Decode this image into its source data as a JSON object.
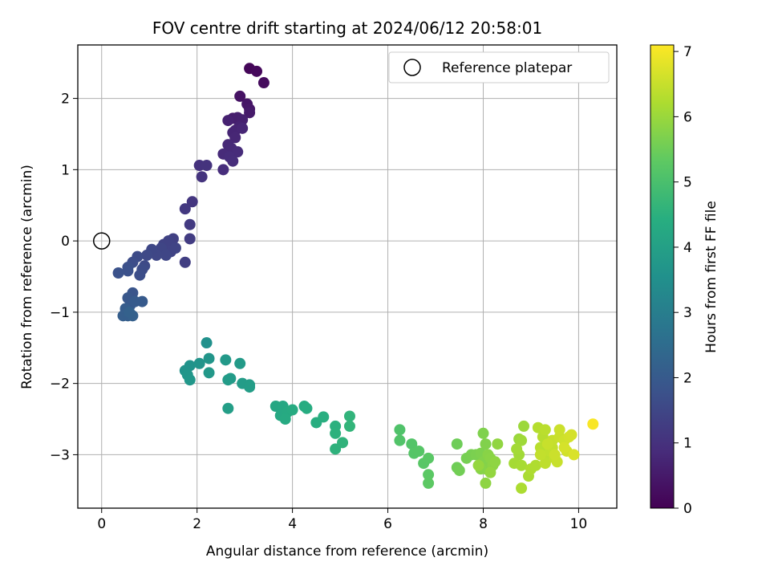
{
  "chart_data": {
    "type": "scatter",
    "title": "FOV centre drift starting at 2024/06/12 20:58:01",
    "xlabel": "Angular distance from reference (arcmin)",
    "ylabel": "Rotation from reference (arcmin)",
    "xlim": [
      -0.5,
      10.8
    ],
    "ylim": [
      -3.75,
      2.75
    ],
    "xticks": [
      0,
      2,
      4,
      6,
      8,
      10
    ],
    "yticks": [
      -3,
      -2,
      -1,
      0,
      1,
      2
    ],
    "grid": true,
    "legend": {
      "placement": "top-right",
      "entries": [
        "Reference platepar"
      ]
    },
    "reference_point": {
      "x": 0,
      "y": 0
    },
    "colorbar": {
      "label": "Hours from first FF file",
      "range": [
        0,
        7.1
      ],
      "ticks": [
        0,
        1,
        2,
        3,
        4,
        5,
        6,
        7
      ],
      "colormap": "viridis"
    },
    "points": [
      [
        3.1,
        2.42,
        0.1
      ],
      [
        3.25,
        2.38,
        0.15
      ],
      [
        3.4,
        2.22,
        0.2
      ],
      [
        2.9,
        2.03,
        0.35
      ],
      [
        3.05,
        1.92,
        0.4
      ],
      [
        3.1,
        1.85,
        0.45
      ],
      [
        3.1,
        1.8,
        0.5
      ],
      [
        2.75,
        1.72,
        0.55
      ],
      [
        2.85,
        1.73,
        0.6
      ],
      [
        2.95,
        1.7,
        0.62
      ],
      [
        2.65,
        1.69,
        0.65
      ],
      [
        2.88,
        1.6,
        0.68
      ],
      [
        2.8,
        1.55,
        0.7
      ],
      [
        2.75,
        1.52,
        0.72
      ],
      [
        2.95,
        1.58,
        0.74
      ],
      [
        2.8,
        1.45,
        0.76
      ],
      [
        2.65,
        1.35,
        0.8
      ],
      [
        2.72,
        1.3,
        0.82
      ],
      [
        2.55,
        1.22,
        0.84
      ],
      [
        2.85,
        1.25,
        0.86
      ],
      [
        2.68,
        1.18,
        0.88
      ],
      [
        2.75,
        1.12,
        0.9
      ],
      [
        2.55,
        1.0,
        0.92
      ],
      [
        2.05,
        1.06,
        1.0
      ],
      [
        2.2,
        1.06,
        1.02
      ],
      [
        2.1,
        0.9,
        1.05
      ],
      [
        1.9,
        0.55,
        1.1
      ],
      [
        1.75,
        0.45,
        1.15
      ],
      [
        1.85,
        0.23,
        1.2
      ],
      [
        1.85,
        0.03,
        1.25
      ],
      [
        1.75,
        -0.3,
        1.3
      ],
      [
        1.5,
        0.03,
        1.35
      ],
      [
        1.4,
        0.0,
        1.38
      ],
      [
        1.3,
        -0.05,
        1.4
      ],
      [
        1.45,
        -0.15,
        1.42
      ],
      [
        1.55,
        -0.1,
        1.44
      ],
      [
        1.25,
        -0.1,
        1.46
      ],
      [
        1.35,
        -0.2,
        1.48
      ],
      [
        1.15,
        -0.2,
        1.5
      ],
      [
        1.05,
        -0.12,
        1.52
      ],
      [
        0.95,
        -0.2,
        1.55
      ],
      [
        0.9,
        -0.35,
        1.58
      ],
      [
        0.75,
        -0.22,
        1.6
      ],
      [
        0.85,
        -0.4,
        1.62
      ],
      [
        0.65,
        -0.3,
        1.65
      ],
      [
        0.8,
        -0.48,
        1.68
      ],
      [
        0.55,
        -0.37,
        1.72
      ],
      [
        0.55,
        -0.42,
        1.75
      ],
      [
        0.35,
        -0.45,
        1.78
      ],
      [
        0.65,
        -0.73,
        1.85
      ],
      [
        0.55,
        -0.8,
        1.9
      ],
      [
        0.6,
        -0.9,
        1.95
      ],
      [
        0.85,
        -0.85,
        2.0
      ],
      [
        0.7,
        -0.85,
        2.02
      ],
      [
        0.5,
        -0.95,
        2.05
      ],
      [
        0.45,
        -1.05,
        2.1
      ],
      [
        0.55,
        -1.05,
        2.12
      ],
      [
        0.65,
        -1.05,
        2.15
      ],
      [
        0.58,
        -1.0,
        2.18
      ],
      [
        2.2,
        -1.43,
        3.55
      ],
      [
        1.85,
        -1.75,
        3.6
      ],
      [
        1.75,
        -1.82,
        3.62
      ],
      [
        2.05,
        -1.72,
        3.65
      ],
      [
        2.25,
        -1.65,
        3.68
      ],
      [
        1.8,
        -1.88,
        3.7
      ],
      [
        1.85,
        -1.95,
        3.72
      ],
      [
        2.25,
        -1.85,
        3.75
      ],
      [
        2.6,
        -1.67,
        3.8
      ],
      [
        2.9,
        -1.72,
        3.82
      ],
      [
        2.7,
        -1.93,
        3.85
      ],
      [
        2.65,
        -1.95,
        3.86
      ],
      [
        2.95,
        -2.0,
        3.88
      ],
      [
        3.1,
        -2.02,
        3.9
      ],
      [
        3.1,
        -2.05,
        3.92
      ],
      [
        2.65,
        -2.35,
        3.95
      ],
      [
        3.65,
        -2.32,
        4.2
      ],
      [
        3.8,
        -2.32,
        4.22
      ],
      [
        3.75,
        -2.45,
        4.25
      ],
      [
        3.9,
        -2.4,
        4.28
      ],
      [
        3.85,
        -2.5,
        4.3
      ],
      [
        4.0,
        -2.37,
        4.33
      ],
      [
        4.25,
        -2.32,
        4.36
      ],
      [
        4.3,
        -2.35,
        4.38
      ],
      [
        4.5,
        -2.55,
        4.42
      ],
      [
        4.65,
        -2.47,
        4.45
      ],
      [
        4.9,
        -2.6,
        4.5
      ],
      [
        4.9,
        -2.7,
        4.52
      ],
      [
        4.9,
        -2.92,
        4.55
      ],
      [
        5.05,
        -2.83,
        4.58
      ],
      [
        5.2,
        -2.46,
        4.6
      ],
      [
        5.2,
        -2.6,
        4.62
      ],
      [
        6.25,
        -2.65,
        5.1
      ],
      [
        6.25,
        -2.8,
        5.12
      ],
      [
        6.5,
        -2.85,
        5.15
      ],
      [
        6.55,
        -2.98,
        5.18
      ],
      [
        6.65,
        -2.95,
        5.2
      ],
      [
        6.75,
        -3.12,
        5.22
      ],
      [
        6.85,
        -3.05,
        5.25
      ],
      [
        6.85,
        -3.28,
        5.28
      ],
      [
        6.85,
        -3.4,
        5.3
      ],
      [
        7.45,
        -2.85,
        5.5
      ],
      [
        7.45,
        -3.18,
        5.52
      ],
      [
        7.5,
        -3.22,
        5.55
      ],
      [
        7.65,
        -3.05,
        5.6
      ],
      [
        7.75,
        -3.0,
        5.62
      ],
      [
        7.85,
        -3.0,
        5.65
      ],
      [
        7.95,
        -2.98,
        5.68
      ],
      [
        8.0,
        -2.7,
        5.7
      ],
      [
        8.05,
        -2.85,
        5.72
      ],
      [
        8.0,
        -3.1,
        5.74
      ],
      [
        8.05,
        -3.2,
        5.76
      ],
      [
        7.95,
        -3.2,
        5.78
      ],
      [
        8.1,
        -3.0,
        5.8
      ],
      [
        8.15,
        -3.05,
        5.82
      ],
      [
        8.2,
        -3.15,
        5.84
      ],
      [
        8.05,
        -3.4,
        5.86
      ],
      [
        8.25,
        -3.1,
        5.88
      ],
      [
        8.3,
        -2.85,
        5.9
      ],
      [
        8.15,
        -3.25,
        5.92
      ],
      [
        7.9,
        -3.15,
        5.94
      ],
      [
        8.75,
        -2.78,
        6.0
      ],
      [
        8.85,
        -2.6,
        6.02
      ],
      [
        8.8,
        -2.8,
        6.05
      ],
      [
        8.75,
        -3.0,
        6.08
      ],
      [
        8.7,
        -2.92,
        6.1
      ],
      [
        8.65,
        -3.12,
        6.12
      ],
      [
        8.8,
        -3.15,
        6.15
      ],
      [
        8.95,
        -3.3,
        6.18
      ],
      [
        8.8,
        -3.47,
        6.2
      ],
      [
        9.0,
        -3.2,
        6.22
      ],
      [
        9.1,
        -3.15,
        6.24
      ],
      [
        9.15,
        -2.62,
        6.3
      ],
      [
        9.25,
        -2.75,
        6.32
      ],
      [
        9.2,
        -2.9,
        6.34
      ],
      [
        9.3,
        -2.65,
        6.36
      ],
      [
        9.35,
        -3.05,
        6.38
      ],
      [
        9.3,
        -3.12,
        6.4
      ],
      [
        9.4,
        -2.95,
        6.42
      ],
      [
        9.45,
        -2.9,
        6.44
      ],
      [
        9.5,
        -3.05,
        6.46
      ],
      [
        9.45,
        -2.8,
        6.48
      ],
      [
        9.55,
        -3.1,
        6.5
      ],
      [
        9.6,
        -2.75,
        6.52
      ],
      [
        9.6,
        -2.65,
        6.55
      ],
      [
        9.7,
        -2.8,
        6.58
      ],
      [
        9.75,
        -2.95,
        6.6
      ],
      [
        9.8,
        -2.75,
        6.62
      ],
      [
        9.85,
        -2.72,
        6.64
      ],
      [
        9.7,
        -2.9,
        6.66
      ],
      [
        9.9,
        -3.0,
        6.7
      ],
      [
        10.3,
        -2.57,
        7.05
      ],
      [
        9.35,
        -2.85,
        6.5
      ],
      [
        9.5,
        -3.0,
        6.55
      ],
      [
        9.2,
        -3.0,
        6.45
      ]
    ]
  }
}
